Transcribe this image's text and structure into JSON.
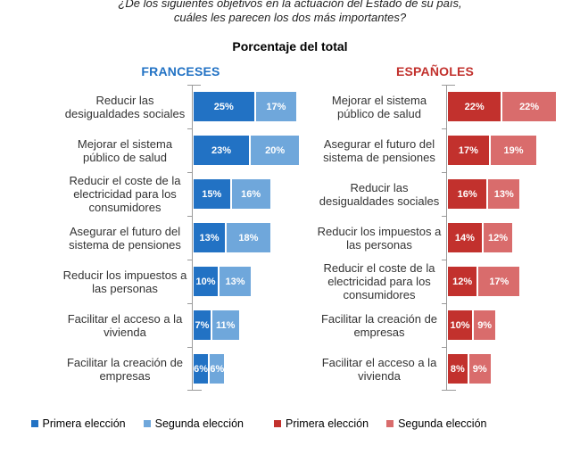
{
  "title": {
    "line1": "¿De los siguientes objetivos en la actuación del Estado de su país,",
    "line2": "cuáles les parecen los dos más importantes?"
  },
  "subtitle": "Porcentaje del total",
  "colors": {
    "blue_primary": "#2272C4",
    "blue_secondary": "#6FA7DB",
    "red_primary": "#C2312D",
    "red_secondary": "#D96C6C",
    "axis": "#9A9A9A"
  },
  "chart_data": [
    {
      "type": "bar",
      "title": "FRANCESES",
      "header_color": "#2272C4",
      "orientation": "horizontal-stacked",
      "xlabel": "",
      "ylabel": "",
      "xlim": [
        0,
        46
      ],
      "grid": false,
      "legend_position": "bottom",
      "categories": [
        "Reducir las desigualdades sociales",
        "Mejorar el sistema público de salud",
        "Reducir el coste de la electricidad para los consumidores",
        "Asegurar el futuro del sistema de pensiones",
        "Reducir los impuestos a las personas",
        "Facilitar el acceso a la vivienda",
        "Facilitar la creación de empresas"
      ],
      "series": [
        {
          "name": "Primera elección",
          "color": "#2272C4",
          "values": [
            25,
            23,
            15,
            13,
            10,
            7,
            6
          ]
        },
        {
          "name": "Segunda elección",
          "color": "#6FA7DB",
          "values": [
            17,
            20,
            16,
            18,
            13,
            11,
            6
          ]
        }
      ],
      "value_suffix": "%"
    },
    {
      "type": "bar",
      "title": "ESPAÑOLES",
      "header_color": "#C2312D",
      "orientation": "horizontal-stacked",
      "xlabel": "",
      "ylabel": "",
      "xlim": [
        0,
        46
      ],
      "grid": false,
      "legend_position": "bottom",
      "categories": [
        "Mejorar el sistema público de salud",
        "Asegurar el futuro del sistema de pensiones",
        "Reducir las desigualdades sociales",
        "Reducir los impuestos a las personas",
        "Reducir el coste de la electricidad para los consumidores",
        "Facilitar la creación de empresas",
        "Facilitar el acceso a la vivienda"
      ],
      "series": [
        {
          "name": "Primera elección",
          "color": "#C2312D",
          "values": [
            22,
            17,
            16,
            14,
            12,
            10,
            8
          ]
        },
        {
          "name": "Segunda elección",
          "color": "#D96C6C",
          "values": [
            22,
            19,
            13,
            12,
            17,
            9,
            9
          ]
        }
      ],
      "value_suffix": "%"
    }
  ],
  "legend": [
    {
      "label": "Primera elección",
      "color": "#2272C4"
    },
    {
      "label": "Segunda elección",
      "color": "#6FA7DB"
    },
    {
      "label": "Primera elección",
      "color": "#C2312D"
    },
    {
      "label": "Segunda elección",
      "color": "#D96C6C"
    }
  ]
}
